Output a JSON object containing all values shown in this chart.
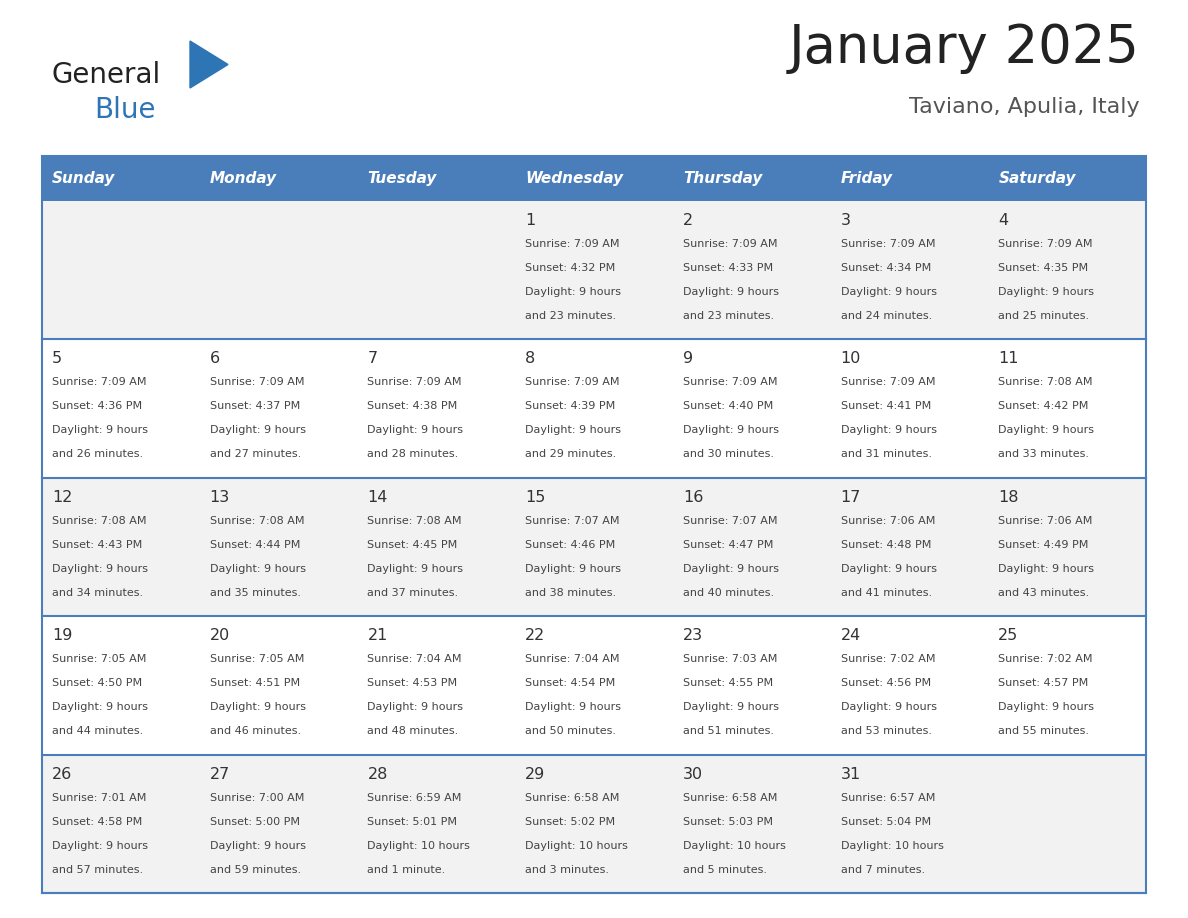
{
  "title": "January 2025",
  "subtitle": "Taviano, Apulia, Italy",
  "days_of_week": [
    "Sunday",
    "Monday",
    "Tuesday",
    "Wednesday",
    "Thursday",
    "Friday",
    "Saturday"
  ],
  "header_bg": "#4A7EBB",
  "header_text": "#FFFFFF",
  "row_bg_light": "#F2F2F2",
  "row_bg_white": "#FFFFFF",
  "border_color": "#4A7EBB",
  "text_color": "#444444",
  "day_number_color": "#333333",
  "title_color": "#222222",
  "subtitle_color": "#555555",
  "logo_general_color": "#222222",
  "logo_blue_color": "#2E75B6",
  "logo_triangle_color": "#2E75B6",
  "calendar": [
    [
      {
        "day": null,
        "sunrise": null,
        "sunset": null,
        "daylight": null
      },
      {
        "day": null,
        "sunrise": null,
        "sunset": null,
        "daylight": null
      },
      {
        "day": null,
        "sunrise": null,
        "sunset": null,
        "daylight": null
      },
      {
        "day": 1,
        "sunrise": "7:09 AM",
        "sunset": "4:32 PM",
        "daylight": "9 hours\nand 23 minutes."
      },
      {
        "day": 2,
        "sunrise": "7:09 AM",
        "sunset": "4:33 PM",
        "daylight": "9 hours\nand 23 minutes."
      },
      {
        "day": 3,
        "sunrise": "7:09 AM",
        "sunset": "4:34 PM",
        "daylight": "9 hours\nand 24 minutes."
      },
      {
        "day": 4,
        "sunrise": "7:09 AM",
        "sunset": "4:35 PM",
        "daylight": "9 hours\nand 25 minutes."
      }
    ],
    [
      {
        "day": 5,
        "sunrise": "7:09 AM",
        "sunset": "4:36 PM",
        "daylight": "9 hours\nand 26 minutes."
      },
      {
        "day": 6,
        "sunrise": "7:09 AM",
        "sunset": "4:37 PM",
        "daylight": "9 hours\nand 27 minutes."
      },
      {
        "day": 7,
        "sunrise": "7:09 AM",
        "sunset": "4:38 PM",
        "daylight": "9 hours\nand 28 minutes."
      },
      {
        "day": 8,
        "sunrise": "7:09 AM",
        "sunset": "4:39 PM",
        "daylight": "9 hours\nand 29 minutes."
      },
      {
        "day": 9,
        "sunrise": "7:09 AM",
        "sunset": "4:40 PM",
        "daylight": "9 hours\nand 30 minutes."
      },
      {
        "day": 10,
        "sunrise": "7:09 AM",
        "sunset": "4:41 PM",
        "daylight": "9 hours\nand 31 minutes."
      },
      {
        "day": 11,
        "sunrise": "7:08 AM",
        "sunset": "4:42 PM",
        "daylight": "9 hours\nand 33 minutes."
      }
    ],
    [
      {
        "day": 12,
        "sunrise": "7:08 AM",
        "sunset": "4:43 PM",
        "daylight": "9 hours\nand 34 minutes."
      },
      {
        "day": 13,
        "sunrise": "7:08 AM",
        "sunset": "4:44 PM",
        "daylight": "9 hours\nand 35 minutes."
      },
      {
        "day": 14,
        "sunrise": "7:08 AM",
        "sunset": "4:45 PM",
        "daylight": "9 hours\nand 37 minutes."
      },
      {
        "day": 15,
        "sunrise": "7:07 AM",
        "sunset": "4:46 PM",
        "daylight": "9 hours\nand 38 minutes."
      },
      {
        "day": 16,
        "sunrise": "7:07 AM",
        "sunset": "4:47 PM",
        "daylight": "9 hours\nand 40 minutes."
      },
      {
        "day": 17,
        "sunrise": "7:06 AM",
        "sunset": "4:48 PM",
        "daylight": "9 hours\nand 41 minutes."
      },
      {
        "day": 18,
        "sunrise": "7:06 AM",
        "sunset": "4:49 PM",
        "daylight": "9 hours\nand 43 minutes."
      }
    ],
    [
      {
        "day": 19,
        "sunrise": "7:05 AM",
        "sunset": "4:50 PM",
        "daylight": "9 hours\nand 44 minutes."
      },
      {
        "day": 20,
        "sunrise": "7:05 AM",
        "sunset": "4:51 PM",
        "daylight": "9 hours\nand 46 minutes."
      },
      {
        "day": 21,
        "sunrise": "7:04 AM",
        "sunset": "4:53 PM",
        "daylight": "9 hours\nand 48 minutes."
      },
      {
        "day": 22,
        "sunrise": "7:04 AM",
        "sunset": "4:54 PM",
        "daylight": "9 hours\nand 50 minutes."
      },
      {
        "day": 23,
        "sunrise": "7:03 AM",
        "sunset": "4:55 PM",
        "daylight": "9 hours\nand 51 minutes."
      },
      {
        "day": 24,
        "sunrise": "7:02 AM",
        "sunset": "4:56 PM",
        "daylight": "9 hours\nand 53 minutes."
      },
      {
        "day": 25,
        "sunrise": "7:02 AM",
        "sunset": "4:57 PM",
        "daylight": "9 hours\nand 55 minutes."
      }
    ],
    [
      {
        "day": 26,
        "sunrise": "7:01 AM",
        "sunset": "4:58 PM",
        "daylight": "9 hours\nand 57 minutes."
      },
      {
        "day": 27,
        "sunrise": "7:00 AM",
        "sunset": "5:00 PM",
        "daylight": "9 hours\nand 59 minutes."
      },
      {
        "day": 28,
        "sunrise": "6:59 AM",
        "sunset": "5:01 PM",
        "daylight": "10 hours\nand 1 minute."
      },
      {
        "day": 29,
        "sunrise": "6:58 AM",
        "sunset": "5:02 PM",
        "daylight": "10 hours\nand 3 minutes."
      },
      {
        "day": 30,
        "sunrise": "6:58 AM",
        "sunset": "5:03 PM",
        "daylight": "10 hours\nand 5 minutes."
      },
      {
        "day": 31,
        "sunrise": "6:57 AM",
        "sunset": "5:04 PM",
        "daylight": "10 hours\nand 7 minutes."
      },
      {
        "day": null,
        "sunrise": null,
        "sunset": null,
        "daylight": null
      }
    ]
  ]
}
